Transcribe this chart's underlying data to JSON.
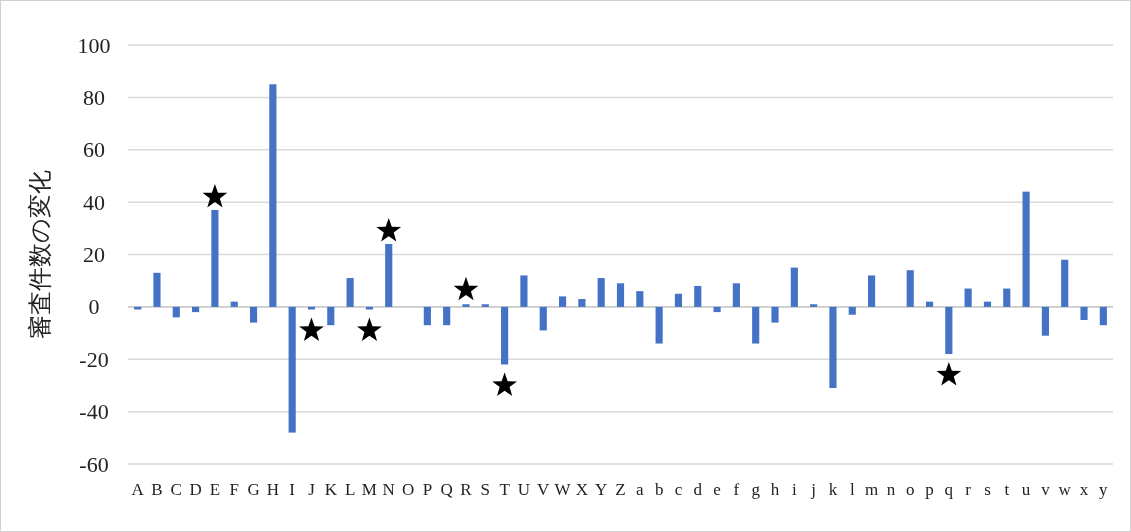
{
  "chart_data": {
    "type": "bar",
    "ylabel": "審査件数の変化",
    "categories": [
      "A",
      "B",
      "C",
      "D",
      "E",
      "F",
      "G",
      "H",
      "I",
      "J",
      "K",
      "L",
      "M",
      "N",
      "O",
      "P",
      "Q",
      "R",
      "S",
      "T",
      "U",
      "V",
      "W",
      "X",
      "Y",
      "Z",
      "a",
      "b",
      "c",
      "d",
      "e",
      "f",
      "g",
      "h",
      "i",
      "j",
      "k",
      "l",
      "m",
      "n",
      "o",
      "p",
      "q",
      "r",
      "s",
      "t",
      "u",
      "v",
      "w",
      "x",
      "y"
    ],
    "series": [
      {
        "color": "#4472c4",
        "values": [
          -1,
          13,
          -4,
          -2,
          37,
          2,
          -6,
          85,
          -48,
          -1,
          -7,
          11,
          -1,
          24,
          0,
          -7,
          -7,
          1,
          1,
          -22,
          12,
          -9,
          4,
          3,
          11,
          9,
          6,
          -14,
          5,
          8,
          -2,
          9,
          -14,
          -6,
          15,
          1,
          -31,
          -3,
          12,
          0,
          14,
          2,
          -18,
          7,
          2,
          7,
          44,
          -11,
          18,
          -5,
          -7
        ]
      },
      {
        "type": "scatter",
        "color": "#000000",
        "marker": "star",
        "x": [
          "E",
          "J",
          "M",
          "N",
          "R",
          "T",
          "q"
        ],
        "values": [
          42,
          -9,
          -9,
          29,
          6.5,
          -30,
          -26
        ]
      }
    ],
    "ylim": [
      -60,
      100
    ],
    "yticks": [
      -60,
      -40,
      -20,
      0,
      20,
      40,
      60,
      80,
      100
    ],
    "grid": "y"
  }
}
